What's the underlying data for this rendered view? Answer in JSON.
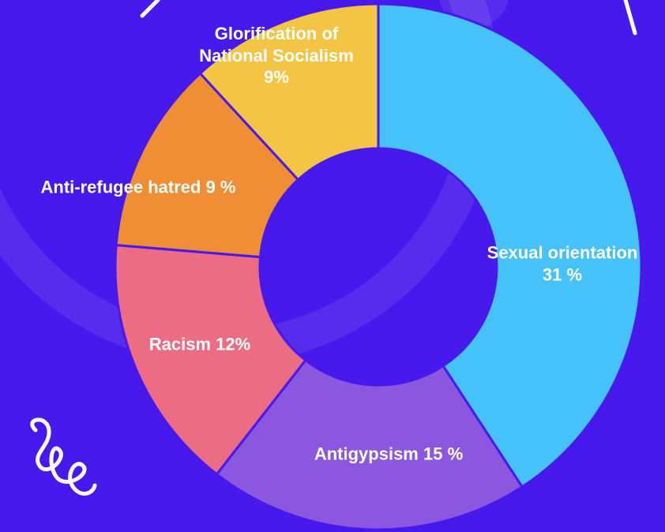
{
  "chart_data": {
    "type": "donut",
    "categories": [
      "Sexual orientation",
      "Antigypsism",
      "Racism",
      "Anti-refugee hatred",
      "Glorification of National Socialism"
    ],
    "values": [
      31,
      15,
      12,
      9,
      9
    ],
    "value_labels": [
      "31 %",
      "15 %",
      "12%",
      "9 %",
      "9%"
    ],
    "colors": [
      "#45c2f9",
      "#8b57df",
      "#ec6c84",
      "#ef8e35",
      "#f4c545"
    ]
  }
}
